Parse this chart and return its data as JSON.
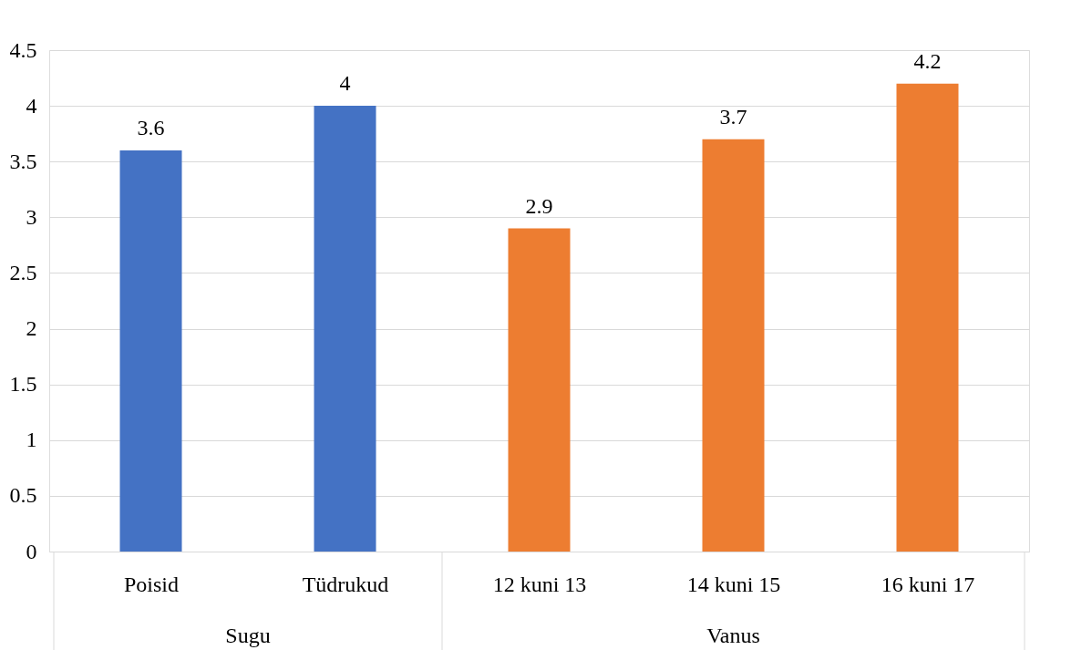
{
  "chart_data": {
    "type": "bar",
    "categories": [
      "Poisid",
      "Tüdrukud",
      "12 kuni 13",
      "14 kuni 15",
      "16 kuni 17"
    ],
    "values": [
      3.6,
      4,
      2.9,
      3.7,
      4.2
    ],
    "colors": [
      "#4472c4",
      "#4472c4",
      "#ed7d31",
      "#ed7d31",
      "#ed7d31"
    ],
    "ylim": [
      0,
      4.5
    ],
    "yticks": [
      0,
      0.5,
      1,
      1.5,
      2,
      2.5,
      3,
      3.5,
      4,
      4.5
    ],
    "grid": "y",
    "data_labels": true,
    "annotations": [
      "Sugu",
      "Vanus"
    ]
  }
}
